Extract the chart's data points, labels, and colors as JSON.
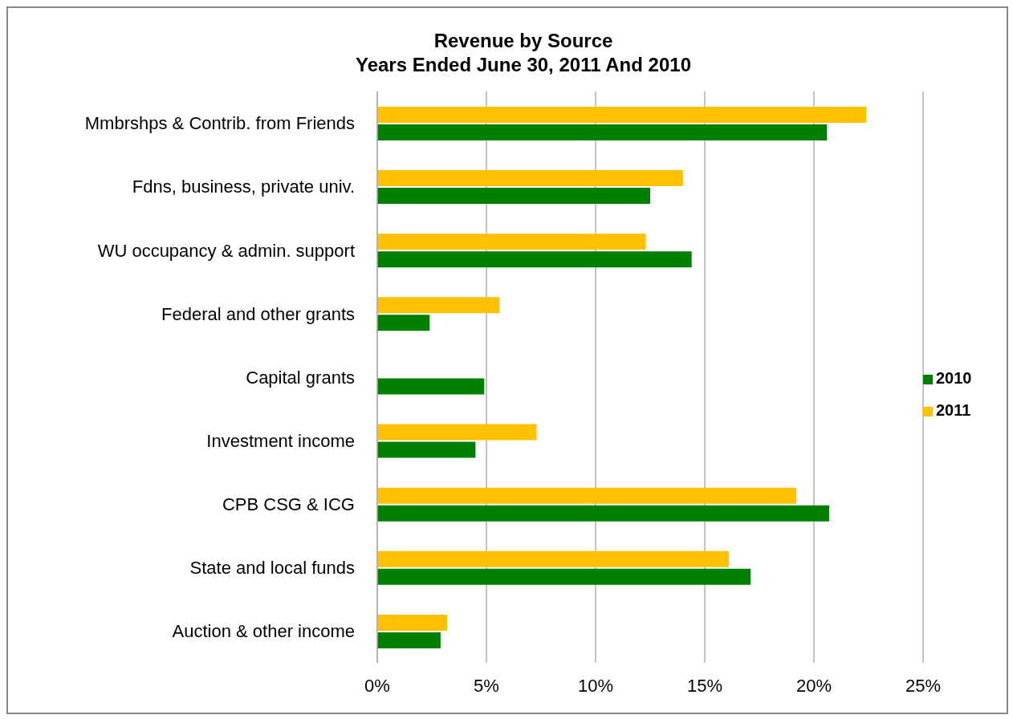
{
  "chart_data": {
    "type": "bar",
    "orientation": "horizontal",
    "title": "Revenue by Source",
    "subtitle": "Years Ended June 30, 2011 And 2010",
    "categories": [
      "Mmbrshps & Contrib. from Friends",
      "Fdns, business, private univ.",
      "WU occupancy & admin. support",
      "Federal and other grants",
      "Capital grants",
      "Investment income",
      "CPB CSG & ICG",
      "State and local funds",
      "Auction & other income"
    ],
    "series": [
      {
        "name": "2011",
        "color": "#ffc000",
        "values": [
          22.4,
          14.0,
          12.3,
          5.6,
          0,
          7.3,
          19.2,
          16.1,
          3.2
        ]
      },
      {
        "name": "2010",
        "color": "#008000",
        "values": [
          20.6,
          12.5,
          14.4,
          2.4,
          4.9,
          4.5,
          20.7,
          17.1,
          2.9
        ]
      }
    ],
    "xlim": [
      0,
      25
    ],
    "xticks": [
      {
        "value": 0,
        "label": "0%"
      },
      {
        "value": 5,
        "label": "5%"
      },
      {
        "value": 10,
        "label": "10%"
      },
      {
        "value": 15,
        "label": "15%"
      },
      {
        "value": 20,
        "label": "20%"
      },
      {
        "value": 25,
        "label": "25%"
      }
    ],
    "grid": "x",
    "legend": "right"
  }
}
